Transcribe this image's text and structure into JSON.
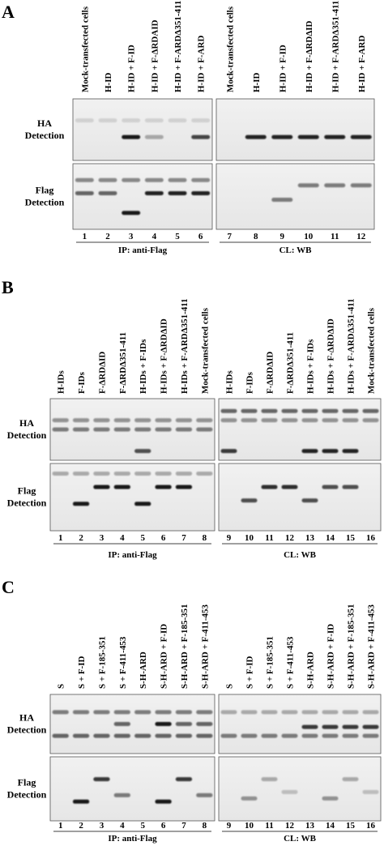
{
  "panels": [
    {
      "letter": "A",
      "left": {
        "lanes": [
          "Mock-transfected cells",
          "H-ID",
          "H-ID + F-ID",
          "H-ID + F-ΔRDAID",
          "H-ID + F-ARDΔ351-411",
          "H-ID + F-ARD"
        ],
        "numbers": [
          "1",
          "2",
          "3",
          "4",
          "5",
          "6"
        ],
        "caption": "IP: anti-Flag"
      },
      "right": {
        "lanes": [
          "Mock-transfected cells",
          "H-ID",
          "H-ID + F-ID",
          "H-ID + F-ΔRDΔID",
          "H-ID + F-ARDΔ351-411",
          "H-ID + F-ARD"
        ],
        "numbers": [
          "7",
          "8",
          "9",
          "10",
          "11",
          "12"
        ],
        "caption": "CL: WB"
      },
      "rows": [
        [
          "HA",
          "Detection"
        ],
        [
          "Flag",
          "Detection"
        ]
      ]
    },
    {
      "letter": "B",
      "left": {
        "lanes": [
          "H-IDs",
          "F-IDs",
          "F-ΔRDΔID",
          "F-ΔRDΔ351-411",
          "H-IDs + F-IDs",
          "H-IDs + F-ΔRDΔID",
          "H-IDs + F-ARDΔ351-411",
          "Mock-transfected cells"
        ],
        "numbers": [
          "1",
          "2",
          "3",
          "4",
          "5",
          "6",
          "7",
          "8"
        ],
        "caption": "IP: anti-Flag"
      },
      "right": {
        "lanes": [
          "H-IDs",
          "F-IDs",
          "F-ΔRDΔID",
          "F-ΔRDΔ351-411",
          "H-IDs + F-IDs",
          "H-IDs + F-ΔRDΔID",
          "H-IDs + F-ARDΔ351-411",
          "Mock-transfected cells"
        ],
        "numbers": [
          "9",
          "10",
          "11",
          "12",
          "13",
          "14",
          "15",
          "16"
        ],
        "caption": "CL: WB"
      },
      "rows": [
        [
          "HA",
          "Detection"
        ],
        [
          "Flag",
          "Detection"
        ]
      ]
    },
    {
      "letter": "C",
      "left": {
        "lanes": [
          "S",
          "S + F-ID",
          "S + F-185-351",
          "S + F-411-453",
          "S-H-ARD",
          "S-H-ARD + F-ID",
          "S-H-ARD + F-185-351",
          "S-H-ARD + F-411-453"
        ],
        "numbers": [
          "1",
          "2",
          "3",
          "4",
          "5",
          "6",
          "7",
          "8"
        ],
        "caption": "IP: anti-Flag"
      },
      "right": {
        "lanes": [
          "S",
          "S + F-ID",
          "S + F-185-351",
          "S + F-411-453",
          "S-H-ARD",
          "S-H-ARD + F-ID",
          "S-H-ARD + F-185-351",
          "S-H-ARD + F-411-453"
        ],
        "numbers": [
          "9",
          "10",
          "11",
          "12",
          "13",
          "14",
          "15",
          "16"
        ],
        "caption": "CL: WB"
      },
      "rows": [
        [
          "HA",
          "Detection"
        ],
        [
          "Flag",
          "Detection"
        ]
      ]
    }
  ]
}
